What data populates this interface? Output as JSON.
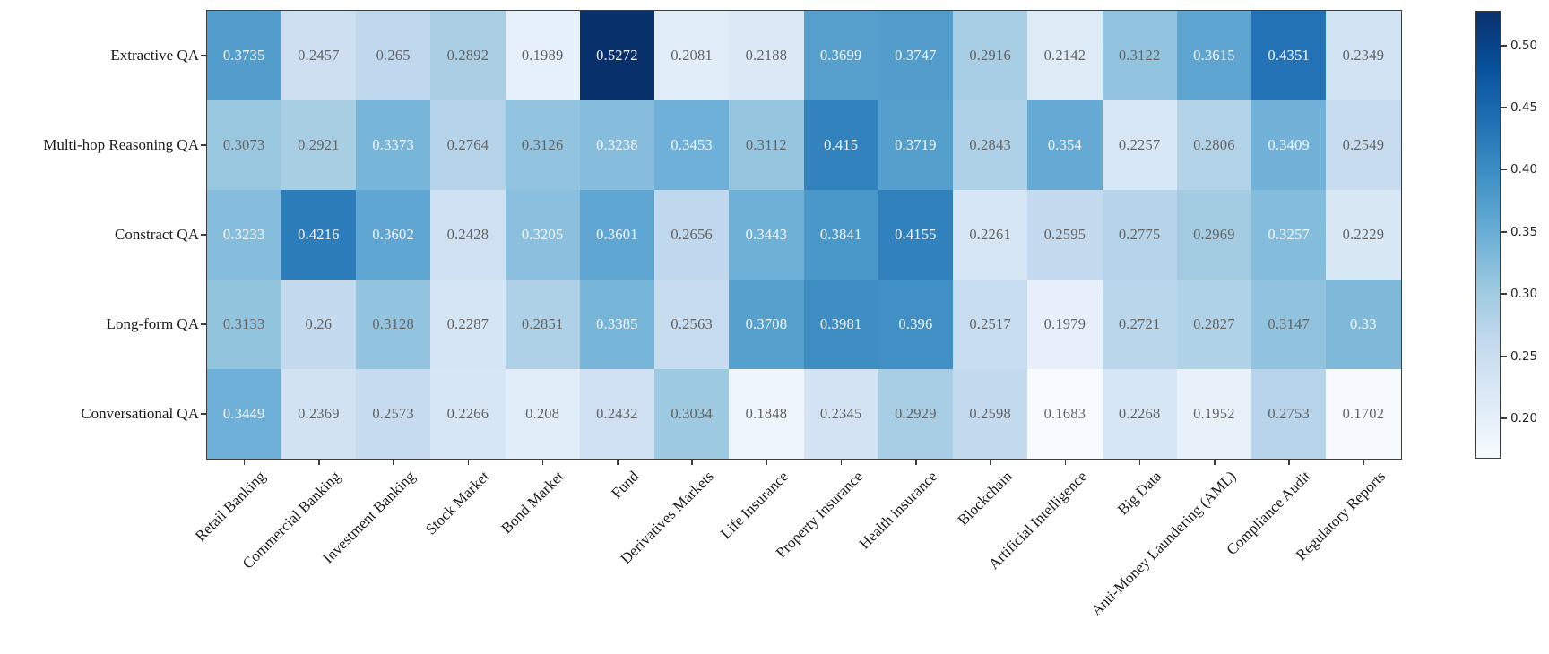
{
  "figure": {
    "background": "#ffffff",
    "spine_color": "#3c3c3c"
  },
  "chart_data": {
    "type": "heatmap",
    "title": "",
    "xlabel": "",
    "ylabel": "",
    "rows": [
      "Extractive QA",
      "Multi-hop Reasoning QA",
      "Constract QA",
      "Long-form QA",
      "Conversational QA"
    ],
    "columns": [
      "Retail Banking",
      "Commercial Banking",
      "Investment Banking",
      "Stock Market",
      "Bond Market",
      "Fund",
      "Derivatives Markets",
      "Life Insurance",
      "Property Insurance",
      "Health insurance",
      "Blockchain",
      "Artificial Intelligence",
      "Big Data",
      "Anti-Money Laundering (AML)",
      "Compliance Audit",
      "Regulatory Reports"
    ],
    "values": [
      [
        0.3735,
        0.2457,
        0.265,
        0.2892,
        0.1989,
        0.5272,
        0.2081,
        0.2188,
        0.3699,
        0.3747,
        0.2916,
        0.2142,
        0.3122,
        0.3615,
        0.4351,
        0.2349
      ],
      [
        0.3073,
        0.2921,
        0.3373,
        0.2764,
        0.3126,
        0.3238,
        0.3453,
        0.3112,
        0.415,
        0.3719,
        0.2843,
        0.354,
        0.2257,
        0.2806,
        0.3409,
        0.2549
      ],
      [
        0.3233,
        0.4216,
        0.3602,
        0.2428,
        0.3205,
        0.3601,
        0.2656,
        0.3443,
        0.3841,
        0.4155,
        0.2261,
        0.2595,
        0.2775,
        0.2969,
        0.3257,
        0.2229
      ],
      [
        0.3133,
        0.26,
        0.3128,
        0.2287,
        0.2851,
        0.3385,
        0.2563,
        0.3708,
        0.3981,
        0.396,
        0.2517,
        0.1979,
        0.2721,
        0.2827,
        0.3147,
        0.33
      ],
      [
        0.3449,
        0.2369,
        0.2573,
        0.2266,
        0.208,
        0.2432,
        0.3034,
        0.1848,
        0.2345,
        0.2929,
        0.2598,
        0.1683,
        0.2268,
        0.1952,
        0.2753,
        0.1702
      ]
    ],
    "colormap": "Blues",
    "colormap_stops": [
      {
        "t": 0.0,
        "color": "#f7fbff"
      },
      {
        "t": 0.125,
        "color": "#deebf7"
      },
      {
        "t": 0.25,
        "color": "#c6dbef"
      },
      {
        "t": 0.375,
        "color": "#9ecae1"
      },
      {
        "t": 0.5,
        "color": "#6baed6"
      },
      {
        "t": 0.625,
        "color": "#4292c6"
      },
      {
        "t": 0.75,
        "color": "#2171b5"
      },
      {
        "t": 0.875,
        "color": "#08519c"
      },
      {
        "t": 1.0,
        "color": "#08306b"
      }
    ],
    "vmin": 0.1683,
    "vmax": 0.5272,
    "annotation_colors": {
      "light": "#f5f7fa",
      "dark": "#646464"
    },
    "grid": false,
    "legend_position": "right-colorbar",
    "colorbar": {
      "ticks": [
        {
          "value": 0.5,
          "label": "0.50"
        },
        {
          "value": 0.45,
          "label": "0.45"
        },
        {
          "value": 0.4,
          "label": "0.40"
        },
        {
          "value": 0.35,
          "label": "0.35"
        },
        {
          "value": 0.3,
          "label": "0.30"
        },
        {
          "value": 0.25,
          "label": "0.25"
        },
        {
          "value": 0.2,
          "label": "0.20"
        }
      ]
    }
  }
}
